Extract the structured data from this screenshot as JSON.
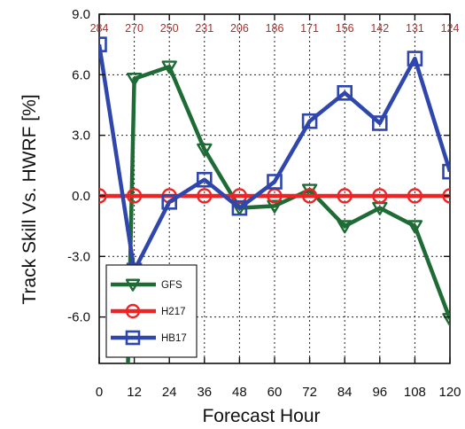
{
  "chart_data": {
    "type": "line",
    "xlabel": "Forecast Hour",
    "ylabel": "Track Skill Vs. HWRF [%]",
    "x": [
      0,
      12,
      24,
      36,
      48,
      60,
      72,
      84,
      96,
      108,
      120
    ],
    "x_tick_labels": [
      "0",
      "12",
      "24",
      "36",
      "48",
      "60",
      "72",
      "84",
      "96",
      "108",
      "120"
    ],
    "y_tick_labels": [
      "9.0",
      "6.0",
      "3.0",
      "0.0",
      "-3.0",
      "-6.0"
    ],
    "y_ticks": [
      9,
      6,
      3,
      0,
      -3,
      -6
    ],
    "xlim": [
      0,
      120
    ],
    "ylim": [
      -8.3,
      9.0
    ],
    "grid": true,
    "legend_position": "bottom-left",
    "top_counts": [
      "284",
      "270",
      "250",
      "231",
      "206",
      "186",
      "171",
      "156",
      "142",
      "131",
      "124"
    ],
    "top_counts_color": "#a8322e",
    "series": [
      {
        "name": "GFS",
        "color": "#1f6b35",
        "marker": "triangle-down",
        "values": [
          null,
          5.8,
          6.4,
          2.3,
          -0.6,
          -0.5,
          0.3,
          -1.5,
          -0.6,
          -1.5,
          -6.1
        ]
      },
      {
        "name": "H217",
        "color": "#ee2424",
        "marker": "circle",
        "values": [
          0,
          0,
          0,
          0,
          0,
          0,
          0,
          0,
          0,
          0,
          0
        ]
      },
      {
        "name": "HB17",
        "color": "#2f47ad",
        "marker": "square",
        "values": [
          7.5,
          -3.7,
          -0.3,
          0.8,
          -0.6,
          0.7,
          3.7,
          5.1,
          3.6,
          6.8,
          1.2
        ]
      }
    ]
  }
}
